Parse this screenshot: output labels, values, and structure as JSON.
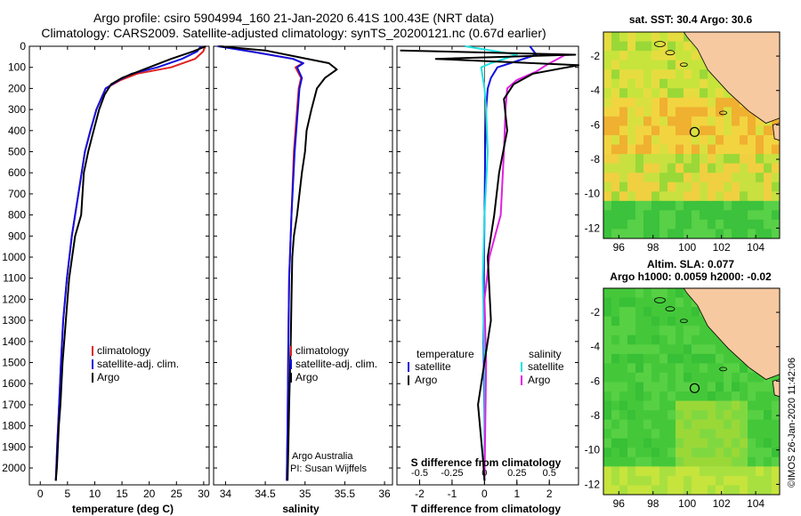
{
  "header": {
    "title_line1": "Argo profile: csiro 5904994_160 21-Jan-2020 6.41S 100.43E (NRT data)",
    "title_line2": "Climatology: CARS2009. Satellite-adjusted climatology: synTS_20200121.nc (0.67d earlier)"
  },
  "colors": {
    "climatology": "#e02020",
    "satellite": "#1010e0",
    "argo": "#000000",
    "sat_salinity": "#20e0e0",
    "argo_salinity": "#e020e0",
    "land": "#f7c9a0"
  },
  "attribution": {
    "line1": "Argo Australia",
    "line2": "PI: Susan Wijffels",
    "stamp": "©IMOS 26-Jan-2020 11:42:06"
  },
  "chart_data": [
    {
      "type": "line",
      "panel": "temperature",
      "xlabel": "temperature (deg C)",
      "ylabel": "",
      "xlim": [
        -2,
        31
      ],
      "ylim": [
        2080,
        0
      ],
      "xticks": [
        0,
        5,
        10,
        15,
        20,
        25,
        30
      ],
      "yticks": [
        0,
        100,
        200,
        300,
        400,
        500,
        600,
        700,
        800,
        900,
        1000,
        1100,
        1200,
        1300,
        1400,
        1500,
        1600,
        1700,
        1800,
        1900,
        2000
      ],
      "legend": [
        "climatology",
        "satellite-adj. clim.",
        "Argo"
      ],
      "series": [
        {
          "name": "climatology",
          "color": "#e02020",
          "x": [
            30.3,
            29.9,
            28.4,
            24,
            17.8,
            14.8,
            12,
            10.3,
            9.2,
            8.2,
            7,
            5.8,
            4.9,
            4.2,
            3.8,
            3.45,
            3.1,
            2.85
          ],
          "y": [
            0,
            25,
            60,
            100,
            130,
            160,
            200,
            300,
            400,
            500,
            700,
            900,
            1100,
            1300,
            1500,
            1700,
            1900,
            2060
          ]
        },
        {
          "name": "satellite-adj. clim.",
          "color": "#1010e0",
          "x": [
            29.5,
            28.8,
            26,
            21.5,
            16.8,
            14.5,
            12,
            10.3,
            9.2,
            8.2,
            7,
            5.8,
            4.9,
            4.2,
            3.8,
            3.45,
            3.1,
            2.85
          ],
          "y": [
            0,
            25,
            60,
            100,
            130,
            160,
            200,
            300,
            400,
            500,
            700,
            900,
            1100,
            1300,
            1500,
            1700,
            1900,
            2060
          ]
        },
        {
          "name": "Argo",
          "color": "#000000",
          "x": [
            30.4,
            28,
            24,
            19,
            15,
            13,
            11.8,
            10.8,
            9.8,
            8.8,
            8,
            7.5,
            6.4,
            5.3,
            4.7,
            4.1,
            3.7,
            3.4,
            3.05,
            2.85
          ],
          "y": [
            0,
            25,
            60,
            110,
            150,
            180,
            230,
            300,
            400,
            500,
            600,
            800,
            900,
            1100,
            1300,
            1500,
            1700,
            1800,
            2000,
            2060
          ]
        }
      ]
    },
    {
      "type": "line",
      "panel": "salinity",
      "xlabel": "salinity",
      "ylabel": "",
      "xlim": [
        33.85,
        36.1
      ],
      "ylim": [
        2080,
        0
      ],
      "xticks": [
        34,
        34.5,
        35,
        35.5,
        36
      ],
      "legend": [
        "climatology",
        "satellite-adj. clim.",
        "Argo"
      ],
      "series": [
        {
          "name": "climatology",
          "color": "#e02020",
          "x": [
            33.95,
            34.4,
            34.85,
            34.97,
            34.88,
            34.95,
            34.92,
            34.9,
            34.86,
            34.83,
            34.8,
            34.79,
            34.78,
            34.77
          ],
          "y": [
            0,
            30,
            60,
            80,
            100,
            150,
            200,
            300,
            500,
            800,
            1100,
            1400,
            1800,
            2060
          ]
        },
        {
          "name": "satellite-adj. clim.",
          "color": "#1010e0",
          "x": [
            33.9,
            34.4,
            34.85,
            34.98,
            34.9,
            34.96,
            34.93,
            34.91,
            34.87,
            34.83,
            34.8,
            34.79,
            34.78,
            34.77
          ],
          "y": [
            0,
            30,
            60,
            80,
            100,
            150,
            200,
            300,
            500,
            800,
            1100,
            1400,
            1800,
            2060
          ]
        },
        {
          "name": "Argo",
          "color": "#000000",
          "x": [
            33.92,
            34.5,
            34.9,
            35.3,
            35.4,
            35.25,
            35.15,
            35.08,
            35.02,
            35.0,
            34.96,
            34.93,
            34.9,
            34.86,
            34.84,
            34.83,
            34.82,
            34.8,
            34.79,
            34.78
          ],
          "y": [
            0,
            20,
            50,
            80,
            110,
            150,
            200,
            300,
            400,
            500,
            600,
            700,
            800,
            900,
            1000,
            1200,
            1400,
            1700,
            1900,
            2060
          ]
        }
      ]
    },
    {
      "type": "line",
      "panel": "difference",
      "xlabel": "T difference from climatology",
      "xlabel_top": "S difference from climatology",
      "xlim": [
        -2.7,
        2.9
      ],
      "ylim": [
        2080,
        0
      ],
      "xticks": [
        -2,
        -1,
        0,
        1,
        2
      ],
      "sticks": [
        -0.5,
        -0.25,
        0,
        0.25,
        0.5
      ],
      "sticklabels": [
        "-0.5",
        "-0.25",
        "0",
        "0.25",
        "0.5"
      ],
      "legend_headers": [
        "temperature",
        "salinity"
      ],
      "legend": [
        "satellite",
        "Argo"
      ],
      "series": [
        {
          "name": "satellite",
          "color": "#1010e0",
          "x": [
            1.4,
            1.6,
            0.8,
            0.4,
            0.2,
            0.1,
            0.05,
            0.02,
            0.0,
            -0.02,
            -0.03,
            0.0,
            0.0
          ],
          "y": [
            0,
            40,
            80,
            100,
            150,
            200,
            300,
            500,
            800,
            1100,
            1400,
            1800,
            2060
          ]
        },
        {
          "name": "satellite",
          "color": "#20e0e0",
          "x": [
            -0.6,
            1.0,
            0.2,
            -0.1,
            -0.05,
            0.0,
            0.05,
            0.1,
            0.0,
            -0.05,
            0.0,
            0.0
          ],
          "y": [
            0,
            40,
            80,
            100,
            150,
            200,
            300,
            500,
            800,
            1100,
            1500,
            2060
          ]
        },
        {
          "name": "Argo",
          "color": "#e020e0",
          "x": [
            2.5,
            1.9,
            1.6,
            1.0,
            0.7,
            0.65,
            0.6,
            0.5,
            0.15,
            0.0,
            0.05,
            0.0
          ],
          "y": [
            40,
            90,
            120,
            160,
            200,
            300,
            500,
            800,
            1000,
            1200,
            1500,
            2060
          ]
        },
        {
          "name": "Argo",
          "color": "#000000",
          "x": [
            -2.6,
            2.8,
            -1.5,
            2.9,
            1.5,
            0.9,
            0.6,
            0.7,
            0.45,
            0.3,
            0.1,
            0.2,
            -0.2,
            -0.05,
            0.0
          ],
          "y": [
            20,
            40,
            60,
            90,
            130,
            180,
            250,
            400,
            600,
            800,
            1000,
            1300,
            1700,
            1950,
            2060
          ]
        }
      ]
    },
    {
      "type": "heatmap",
      "panel": "sst_map",
      "title": "sat. SST: 30.4 Argo: 30.6",
      "xticks": [
        96,
        98,
        100,
        102,
        104
      ],
      "yticks": [
        -2,
        -4,
        -6,
        -8,
        -10,
        -12
      ],
      "xlim": [
        95.1,
        105.4
      ],
      "ylim": [
        -12.6,
        -0.6
      ],
      "float_position": {
        "lon": 100.43,
        "lat": -6.41
      }
    },
    {
      "type": "heatmap",
      "panel": "sla_map",
      "title": "Altim. SLA: 0.077",
      "subtitle": "Argo h1000: 0.0059 h2000: -0.02",
      "xticks": [
        96,
        98,
        100,
        102,
        104
      ],
      "yticks": [
        -2,
        -4,
        -6,
        -8,
        -10,
        -12
      ],
      "xlim": [
        95.1,
        105.4
      ],
      "ylim": [
        -12.6,
        -0.6
      ],
      "float_position": {
        "lon": 100.43,
        "lat": -6.41
      }
    }
  ]
}
